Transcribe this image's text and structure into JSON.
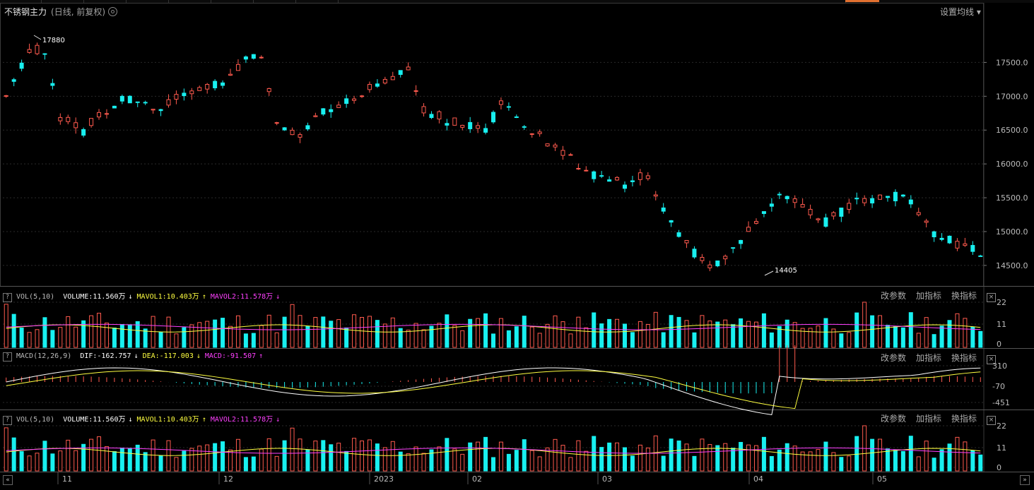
{
  "title": {
    "name": "不锈钢主力",
    "sub": "(日线, 前复权)"
  },
  "settings": {
    "label": "设置均线 ▾"
  },
  "main_chart": {
    "y_ticks": [
      "17500.0",
      "17000.0",
      "16500.0",
      "16000.0",
      "15500.0",
      "15000.0",
      "14500.0"
    ],
    "high_marker": "17880",
    "low_marker": "14405",
    "up_color": "#ff5a4e",
    "down_color": "#18f0f0"
  },
  "x_labels": [
    "11",
    "12",
    "2023",
    "02",
    "03",
    "04",
    "05"
  ],
  "vol_panel": {
    "indicator": "VOL(5,10)",
    "volume": "VOLUME:11.560万",
    "mavol1": "MAVOL1:10.403万",
    "mavol2": "MAVOL2:11.578万",
    "arrow_volume": "↓",
    "arrow_m1": "↑",
    "arrow_m2": "↓",
    "y_ticks": [
      "22",
      "11",
      "0"
    ]
  },
  "macd_panel": {
    "indicator": "MACD(12,26,9)",
    "dif": "DIF:-162.757",
    "dea": "DEA:-117.003",
    "macd": "MACD:-91.507",
    "arrow_dif": "↓",
    "arrow_dea": "↓",
    "arrow_macd": "↑",
    "y_ticks": [
      "310",
      "-70",
      "-451"
    ]
  },
  "vol_panel2": {
    "indicator": "VOL(5,10)",
    "volume": "VOLUME:11.560万",
    "mavol1": "MAVOL1:10.403万",
    "mavol2": "MAVOL2:11.578万",
    "arrow_volume": "↓",
    "arrow_m1": "↑",
    "arrow_m2": "↓",
    "y_ticks": [
      "22",
      "11",
      "0"
    ]
  },
  "panel_buttons": {
    "params": "改参数",
    "add": "加指标",
    "switch": "换指标",
    "close": "×",
    "help": "?"
  }
}
